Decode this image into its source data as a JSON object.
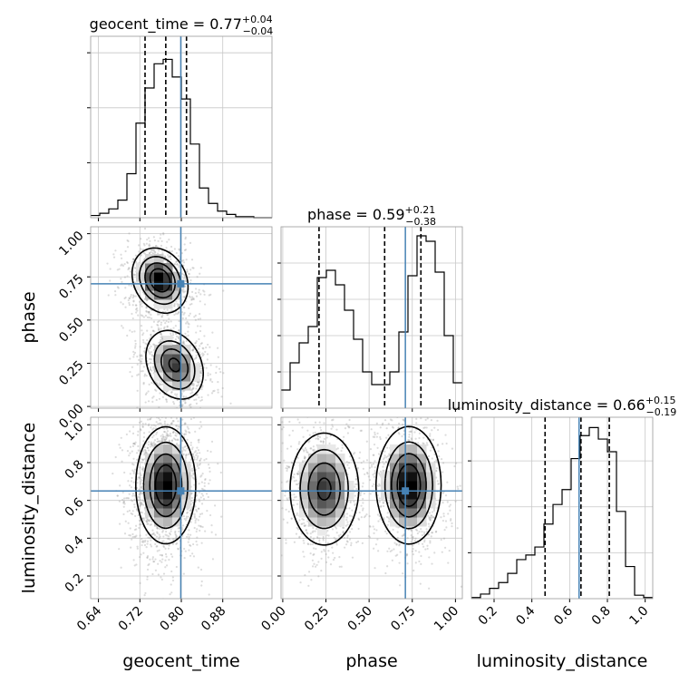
{
  "colors": {
    "truth": "#4682b4",
    "hist": "#000000",
    "grid": "#c8c8c8",
    "samples": "#9a9a9a"
  },
  "chart_data": {
    "type": "corner",
    "parameters": [
      "geocent_time",
      "phase",
      "luminosity_distance"
    ],
    "axis_labels": {
      "geocent_time": "geocent_time",
      "phase": "phase",
      "luminosity_distance": "luminosity_distance"
    },
    "ranges": {
      "geocent_time": [
        0.625,
        0.975
      ],
      "phase": [
        -0.01,
        1.04
      ],
      "luminosity_distance": [
        0.08,
        1.04
      ]
    },
    "tick_labels": {
      "geocent_time": [
        "0.64",
        "0.72",
        "0.80",
        "0.88"
      ],
      "phase": [
        "0.00",
        "0.25",
        "0.50",
        "0.75",
        "1.00"
      ],
      "luminosity_distance_x": [
        "0.2",
        "0.4",
        "0.6",
        "0.8",
        "1.0"
      ],
      "luminosity_distance_y": [
        "0.2",
        "0.4",
        "0.6",
        "0.8",
        "1.0"
      ]
    },
    "truths": {
      "geocent_time": 0.799,
      "phase": 0.71,
      "luminosity_distance": 0.65
    },
    "titles": [
      {
        "param": "geocent_time",
        "prefix": "geocent_time = 0.77",
        "sup": "+0.04",
        "sub": "−0.04"
      },
      {
        "param": "phase",
        "prefix": "phase = 0.59",
        "sup": "+0.21",
        "sub": "−0.38"
      },
      {
        "param": "luminosity_distance",
        "prefix": "luminosity_distance = 0.66",
        "sup": "+0.15",
        "sub": "−0.19"
      }
    ],
    "quantiles": {
      "geocent_time": [
        0.73,
        0.77,
        0.81
      ],
      "phase": [
        0.21,
        0.59,
        0.8
      ],
      "luminosity_distance": [
        0.47,
        0.66,
        0.81
      ]
    },
    "histograms": {
      "geocent_time": {
        "edges": [
          0.625,
          0.6425,
          0.66,
          0.6775,
          0.695,
          0.7125,
          0.73,
          0.7475,
          0.765,
          0.7825,
          0.8,
          0.8175,
          0.835,
          0.8525,
          0.87,
          0.8875,
          0.905,
          0.9225,
          0.94,
          0.9575,
          0.975
        ],
        "counts": [
          2,
          4,
          8,
          16,
          40,
          86,
          118,
          140,
          144,
          128,
          108,
          67,
          27,
          13,
          6,
          3,
          1,
          1,
          0,
          0
        ]
      },
      "phase": {
        "edges": [
          -0.01,
          0.0425,
          0.095,
          0.1475,
          0.2,
          0.2525,
          0.305,
          0.3575,
          0.41,
          0.4625,
          0.515,
          0.5675,
          0.62,
          0.6725,
          0.725,
          0.7775,
          0.83,
          0.8825,
          0.935,
          0.9875,
          1.04
        ],
        "counts": [
          10,
          25,
          36,
          45,
          72,
          76,
          68,
          54,
          38,
          20,
          13,
          13,
          20,
          42,
          73,
          95,
          92,
          75,
          40,
          14
        ]
      },
      "luminosity_distance": {
        "edges": [
          0.08,
          0.128,
          0.176,
          0.224,
          0.272,
          0.32,
          0.368,
          0.416,
          0.464,
          0.512,
          0.56,
          0.608,
          0.656,
          0.704,
          0.752,
          0.8,
          0.848,
          0.896,
          0.944,
          0.992,
          1.04
        ],
        "counts": [
          1,
          4,
          9,
          14,
          22,
          34,
          38,
          45,
          65,
          82,
          95,
          122,
          142,
          149,
          139,
          128,
          76,
          28,
          3,
          1
        ]
      }
    },
    "hist_ymax": {
      "geocent_time": 165,
      "phase": 100,
      "luminosity_distance": 158
    },
    "hist_ytick_counts": {
      "geocent_time": [
        50,
        100,
        150
      ],
      "phase": [
        20,
        40,
        60,
        80
      ],
      "luminosity_distance": [
        40,
        80,
        120
      ]
    },
    "density_modes": [
      {
        "x": "geocent_time",
        "y": "phase",
        "modes": [
          {
            "cx": 0.759,
            "cy": 0.73,
            "sx": 0.026,
            "sy": 0.09,
            "rho": -0.2,
            "w": 0.55
          },
          {
            "cx": 0.787,
            "cy": 0.24,
            "sx": 0.028,
            "sy": 0.1,
            "rho": -0.25,
            "w": 0.45
          }
        ]
      },
      {
        "x": "geocent_time",
        "y": "luminosity_distance",
        "modes": [
          {
            "cx": 0.77,
            "cy": 0.68,
            "sx": 0.028,
            "sy": 0.15,
            "rho": 0.0,
            "w": 1.0
          }
        ]
      },
      {
        "x": "phase",
        "y": "luminosity_distance",
        "modes": [
          {
            "cx": 0.24,
            "cy": 0.66,
            "sx": 0.1,
            "sy": 0.15,
            "rho": 0.0,
            "w": 0.45
          },
          {
            "cx": 0.73,
            "cy": 0.68,
            "sx": 0.09,
            "sy": 0.15,
            "rho": 0.0,
            "w": 0.55
          }
        ]
      }
    ],
    "grid": true
  }
}
